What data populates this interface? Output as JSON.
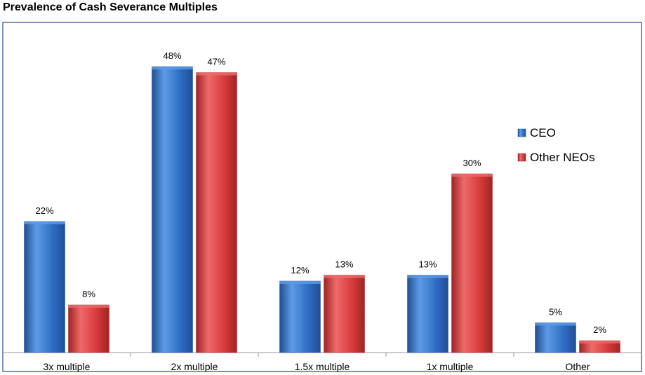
{
  "chart_data": {
    "type": "bar",
    "title": "Prevalence of Cash Severance Multiples",
    "categories": [
      "3x multiple",
      "2x multiple",
      "1.5x multiple",
      "1x multiple",
      "Other"
    ],
    "series": [
      {
        "name": "CEO",
        "values": [
          22,
          48,
          12,
          13,
          5
        ],
        "labels": [
          "22%",
          "48%",
          "12%",
          "13%",
          "5%"
        ],
        "color": "#2E6DC4",
        "color_light": "#5E9BE6",
        "color_dark": "#1F4F94"
      },
      {
        "name": "Other NEOs",
        "values": [
          8,
          47,
          13,
          30,
          2
        ],
        "labels": [
          "8%",
          "47%",
          "13%",
          "30%",
          "2%"
        ],
        "color": "#D63A3A",
        "color_light": "#EE6A6A",
        "color_dark": "#A02424"
      }
    ],
    "ylim": [
      0,
      50
    ],
    "unit": "%",
    "grid": false,
    "legend": "right",
    "xlabel": "",
    "ylabel": ""
  }
}
